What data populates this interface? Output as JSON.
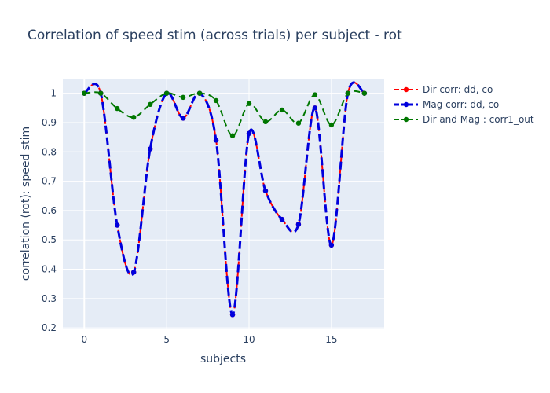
{
  "chart_data": {
    "type": "line",
    "title": "Correlation of speed stim (across trials) per subject - rot",
    "xlabel": "subjects",
    "ylabel": "correlation (rot): speed stim",
    "xlim": [
      -1.3,
      18.2
    ],
    "ylim": [
      0.195,
      1.05
    ],
    "xticks": [
      0,
      5,
      10,
      15
    ],
    "yticks": [
      0.2,
      0.3,
      0.4,
      0.5,
      0.6,
      0.7,
      0.8,
      0.9,
      1
    ],
    "ytick_labels": [
      "0.2",
      "0.3",
      "0.4",
      "0.5",
      "0.6",
      "0.7",
      "0.8",
      "0.9",
      "1"
    ],
    "grid": true,
    "legend_position": "right",
    "background": "#e5ecf6",
    "x": [
      0,
      1,
      2,
      3,
      4,
      5,
      6,
      7,
      8,
      9,
      10,
      11,
      12,
      13,
      14,
      15,
      16,
      17
    ],
    "series": [
      {
        "name": "Dir corr: dd, co",
        "color": "#ff0000",
        "dash": "dash",
        "values": [
          1,
          1,
          0.55,
          0.39,
          0.81,
          1,
          0.915,
          1,
          0.84,
          0.245,
          0.863,
          0.667,
          0.57,
          0.553,
          0.95,
          0.482,
          1,
          1
        ]
      },
      {
        "name": "Mag corr: dd, co",
        "color": "#0000dd",
        "dash": "heavy-dash",
        "values": [
          1,
          1,
          0.55,
          0.39,
          0.81,
          1,
          0.915,
          1,
          0.84,
          0.245,
          0.863,
          0.667,
          0.57,
          0.553,
          0.95,
          0.482,
          1,
          1
        ]
      },
      {
        "name": "Dir and Mag : corr1_out",
        "color": "#007700",
        "dash": "dash",
        "values": [
          1,
          1,
          0.948,
          0.918,
          0.962,
          1,
          0.986,
          1,
          0.975,
          0.855,
          0.965,
          0.903,
          0.943,
          0.898,
          0.995,
          0.892,
          1,
          1
        ]
      }
    ]
  }
}
